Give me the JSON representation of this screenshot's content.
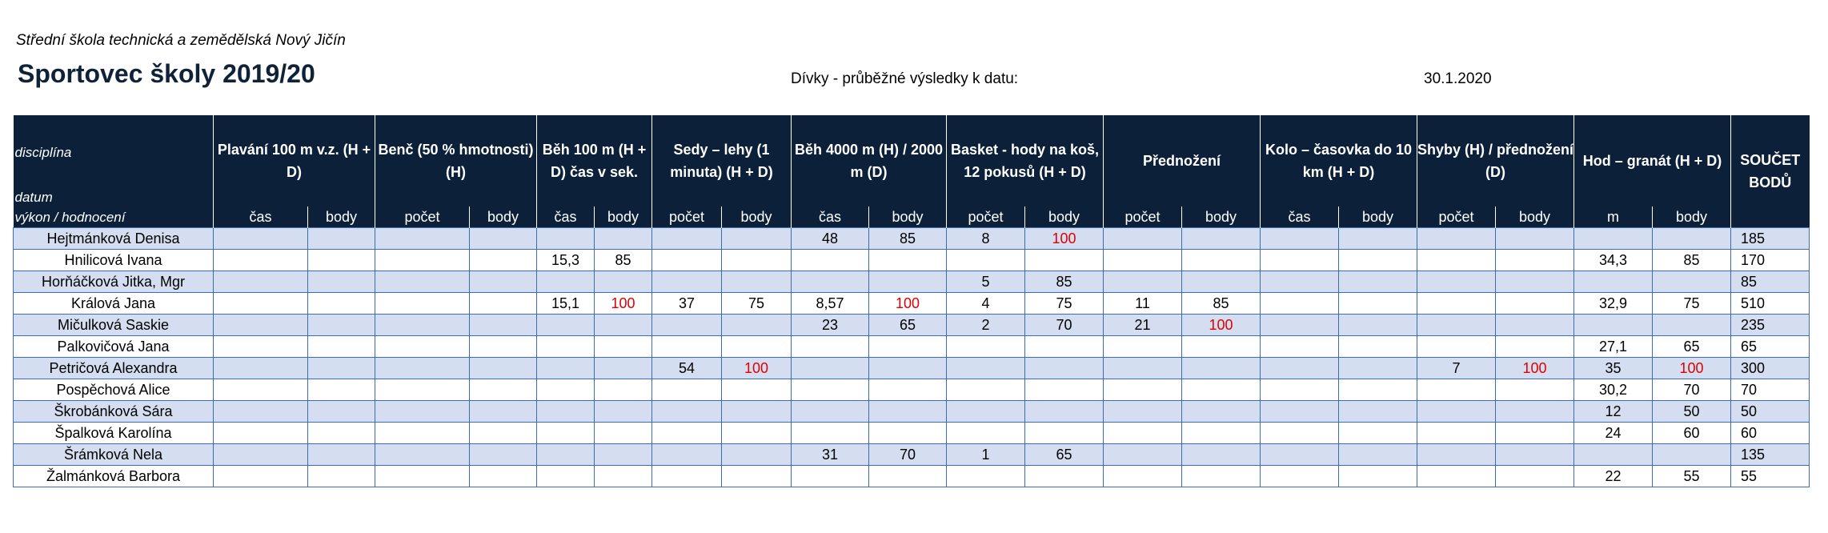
{
  "header": {
    "school": "Střední škola technická a zemědělská Nový Jičín",
    "title": "Sportovec školy 2019/20",
    "subtitle": "Dívky - průběžné výsledky k datu:",
    "date": "30.1.2020"
  },
  "table": {
    "first_col": {
      "line1": "disciplína",
      "line2": "datum",
      "line3": "výkon / hodnocení"
    },
    "disciplines": [
      "Plavání 100 m v.z. (H + D)",
      "Benč (50 % hmotnosti) (H)",
      "Běh 100 m (H + D) čas v sek.",
      "Sedy – lehy (1 minuta) (H + D)",
      "Běh 4000 m (H) / 2000 m (D)",
      "Basket - hody na koš, 12 pokusů (H + D)",
      "Přednožení",
      "Kolo – časovka do 10 km (H + D)",
      "Shyby (H)   / přednožení (D)",
      "Hod – granát (H + D)"
    ],
    "sum_header": "SOUČET BODŮ",
    "subheaders": [
      "čas",
      "body",
      "počet",
      "body",
      "čas",
      "body",
      "počet",
      "body",
      "čas",
      "body",
      "počet",
      "body",
      "počet",
      "body",
      "čas",
      "body",
      "počet",
      "body",
      "m",
      "body"
    ],
    "rows": [
      {
        "name": "Hejtmánková Denisa",
        "cells": [
          "",
          "",
          "",
          "",
          "",
          "",
          "",
          "",
          "48",
          "85",
          "8",
          "100",
          "",
          "",
          "",
          "",
          "",
          "",
          "",
          ""
        ],
        "sum": "185"
      },
      {
        "name": "Hnilicová Ivana",
        "cells": [
          "",
          "",
          "",
          "",
          "15,3",
          "85",
          "",
          "",
          "",
          "",
          "",
          "",
          "",
          "",
          "",
          "",
          "",
          "",
          "34,3",
          "85"
        ],
        "sum": "170"
      },
      {
        "name": "Horňáčková Jitka, Mgr",
        "cells": [
          "",
          "",
          "",
          "",
          "",
          "",
          "",
          "",
          "",
          "",
          "5",
          "85",
          "",
          "",
          "",
          "",
          "",
          "",
          "",
          ""
        ],
        "sum": "85"
      },
      {
        "name": "Králová Jana",
        "cells": [
          "",
          "",
          "",
          "",
          "15,1",
          "100",
          "37",
          "75",
          "8,57",
          "100",
          "4",
          "75",
          "11",
          "85",
          "",
          "",
          "",
          "",
          "32,9",
          "75"
        ],
        "sum": "510"
      },
      {
        "name": "Mičulková Saskie",
        "cells": [
          "",
          "",
          "",
          "",
          "",
          "",
          "",
          "",
          "23",
          "65",
          "2",
          "70",
          "21",
          "100",
          "",
          "",
          "",
          "",
          "",
          ""
        ],
        "sum": "235"
      },
      {
        "name": "Palkovičová Jana",
        "cells": [
          "",
          "",
          "",
          "",
          "",
          "",
          "",
          "",
          "",
          "",
          "",
          "",
          "",
          "",
          "",
          "",
          "",
          "",
          "27,1",
          "65"
        ],
        "sum": "65"
      },
      {
        "name": "Petričová Alexandra",
        "cells": [
          "",
          "",
          "",
          "",
          "",
          "",
          "54",
          "100",
          "",
          "",
          "",
          "",
          "",
          "",
          "",
          "",
          "7",
          "100",
          "35",
          "100"
        ],
        "sum": "300"
      },
      {
        "name": "Pospěchová Alice",
        "cells": [
          "",
          "",
          "",
          "",
          "",
          "",
          "",
          "",
          "",
          "",
          "",
          "",
          "",
          "",
          "",
          "",
          "",
          "",
          "30,2",
          "70"
        ],
        "sum": "70"
      },
      {
        "name": "Škrobánková Sára",
        "cells": [
          "",
          "",
          "",
          "",
          "",
          "",
          "",
          "",
          "",
          "",
          "",
          "",
          "",
          "",
          "",
          "",
          "",
          "",
          "12",
          "50"
        ],
        "sum": "50"
      },
      {
        "name": "Špalková Karolína",
        "cells": [
          "",
          "",
          "",
          "",
          "",
          "",
          "",
          "",
          "",
          "",
          "",
          "",
          "",
          "",
          "",
          "",
          "",
          "",
          "24",
          "60"
        ],
        "sum": "60"
      },
      {
        "name": "Šrámková Nela",
        "cells": [
          "",
          "",
          "",
          "",
          "",
          "",
          "",
          "",
          "31",
          "70",
          "1",
          "65",
          "",
          "",
          "",
          "",
          "",
          "",
          "",
          ""
        ],
        "sum": "135"
      },
      {
        "name": "Žalmánková Barbora",
        "cells": [
          "",
          "",
          "",
          "",
          "",
          "",
          "",
          "",
          "",
          "",
          "",
          "",
          "",
          "",
          "",
          "",
          "",
          "",
          "22",
          "55"
        ],
        "sum": "55"
      }
    ],
    "highlight_value": "100",
    "highlight_color": "#e00000",
    "header_bg": "#0c2139",
    "alt_row_bg": "#d4def0"
  }
}
